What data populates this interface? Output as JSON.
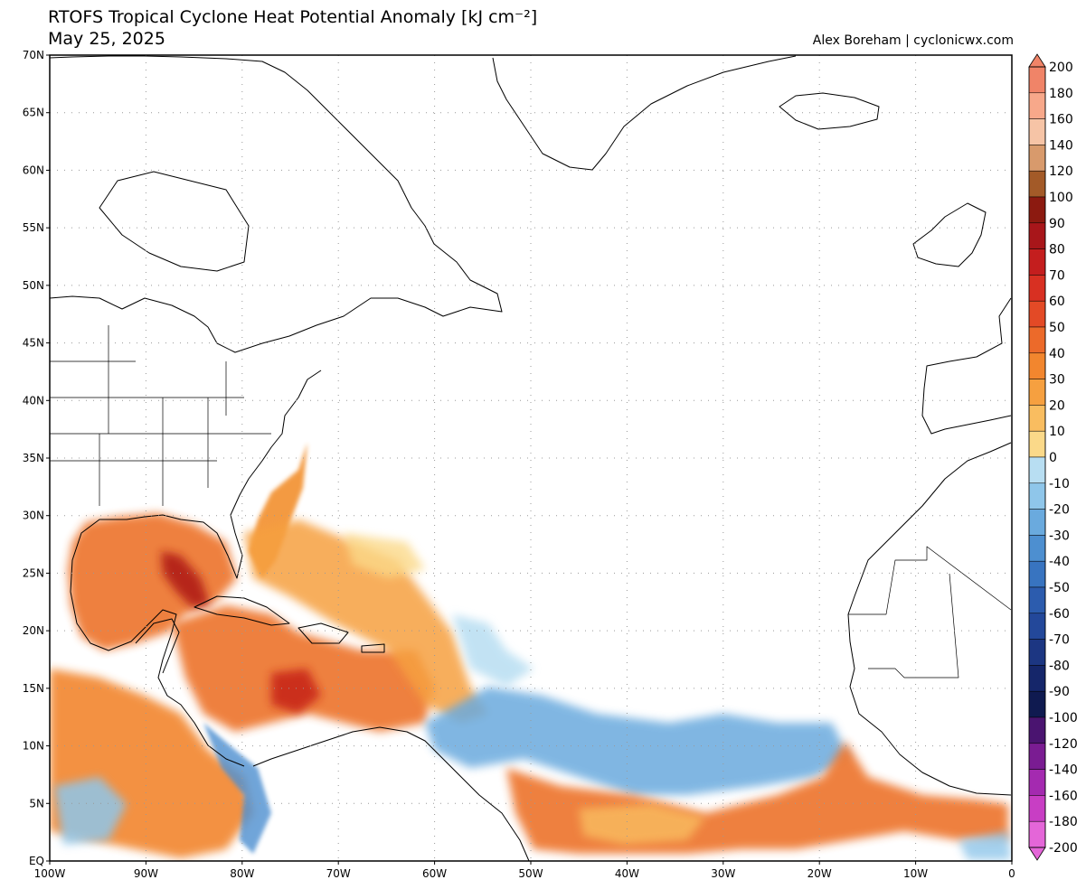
{
  "title": "RTOFS Tropical Cyclone Heat Potential Anomaly [kJ cm⁻²]",
  "subtitle": "May 25, 2025",
  "credit": "Alex Boreham | cyclonicwx.com",
  "map": {
    "lat_ticks": [
      {
        "deg": 70,
        "label": "70N"
      },
      {
        "deg": 65,
        "label": "65N"
      },
      {
        "deg": 60,
        "label": "60N"
      },
      {
        "deg": 55,
        "label": "55N"
      },
      {
        "deg": 50,
        "label": "50N"
      },
      {
        "deg": 45,
        "label": "45N"
      },
      {
        "deg": 40,
        "label": "40N"
      },
      {
        "deg": 35,
        "label": "35N"
      },
      {
        "deg": 30,
        "label": "30N"
      },
      {
        "deg": 25,
        "label": "25N"
      },
      {
        "deg": 20,
        "label": "20N"
      },
      {
        "deg": 15,
        "label": "15N"
      },
      {
        "deg": 10,
        "label": "10N"
      },
      {
        "deg": 5,
        "label": "5N"
      },
      {
        "deg": 0,
        "label": "EQ"
      }
    ],
    "lon_ticks": [
      {
        "deg": -100,
        "label": "100W"
      },
      {
        "deg": -90,
        "label": "90W"
      },
      {
        "deg": -80,
        "label": "80W"
      },
      {
        "deg": -70,
        "label": "70W"
      },
      {
        "deg": -60,
        "label": "60W"
      },
      {
        "deg": -50,
        "label": "50W"
      },
      {
        "deg": -40,
        "label": "40W"
      },
      {
        "deg": -30,
        "label": "30W"
      },
      {
        "deg": -20,
        "label": "20W"
      },
      {
        "deg": -10,
        "label": "10W"
      },
      {
        "deg": 0,
        "label": "0"
      }
    ],
    "extent": {
      "lon_min": -100,
      "lon_max": 0,
      "lat_min": 0,
      "lat_max": 70
    },
    "gridlines": "dotted"
  },
  "colorbar": {
    "levels": [
      {
        "label": "200",
        "color": "#f08468"
      },
      {
        "label": "180",
        "color": "#f7a88a"
      },
      {
        "label": "160",
        "color": "#f6c4a6"
      },
      {
        "label": "140",
        "color": "#d89a6c"
      },
      {
        "label": "120",
        "color": "#a35a28"
      },
      {
        "label": "100",
        "color": "#8c1a10"
      },
      {
        "label": "90",
        "color": "#a8161a"
      },
      {
        "label": "80",
        "color": "#c41e1e"
      },
      {
        "label": "70",
        "color": "#d83022"
      },
      {
        "label": "60",
        "color": "#e34a26"
      },
      {
        "label": "50",
        "color": "#ec6a2a"
      },
      {
        "label": "40",
        "color": "#f2862e"
      },
      {
        "label": "30",
        "color": "#f6a040"
      },
      {
        "label": "20",
        "color": "#f9bd60"
      },
      {
        "label": "10",
        "color": "#fbd989"
      },
      {
        "label": "0",
        "color": "#ffffff"
      },
      {
        "label": "-10",
        "color": "#b8def2"
      },
      {
        "label": "-20",
        "color": "#8fc6ea"
      },
      {
        "label": "-30",
        "color": "#6aaade"
      },
      {
        "label": "-40",
        "color": "#4d8fd0"
      },
      {
        "label": "-50",
        "color": "#3874c0"
      },
      {
        "label": "-60",
        "color": "#2c5cae"
      },
      {
        "label": "-70",
        "color": "#23489a"
      },
      {
        "label": "-80",
        "color": "#1c3682"
      },
      {
        "label": "-90",
        "color": "#15266a"
      },
      {
        "label": "-100",
        "color": "#0f1a50"
      },
      {
        "label": "-120",
        "color": "#4a1470"
      },
      {
        "label": "-140",
        "color": "#7a1c92"
      },
      {
        "label": "-160",
        "color": "#a42ab0"
      },
      {
        "label": "-180",
        "color": "#c83ec4"
      },
      {
        "label": "-200",
        "color": "#e466d8"
      }
    ]
  }
}
